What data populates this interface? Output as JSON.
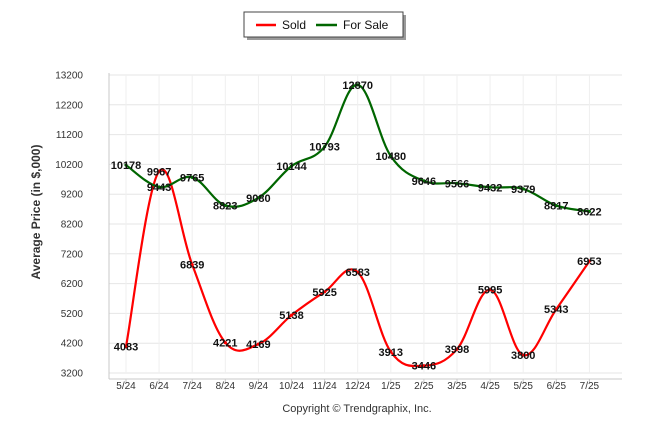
{
  "chart_data": {
    "type": "line",
    "categories": [
      "5/24",
      "6/24",
      "7/24",
      "8/24",
      "9/24",
      "10/24",
      "11/24",
      "12/24",
      "1/25",
      "2/25",
      "3/25",
      "4/25",
      "5/25",
      "6/25",
      "7/25"
    ],
    "series": [
      {
        "name": "Sold",
        "color": "#ff0000",
        "values": [
          4083,
          9967,
          6839,
          4221,
          4169,
          5138,
          5925,
          6583,
          3913,
          3446,
          3998,
          5995,
          3800,
          5343,
          6953
        ]
      },
      {
        "name": "For Sale",
        "color": "#006600",
        "values": [
          10178,
          9443,
          9765,
          8823,
          9080,
          10144,
          10793,
          12870,
          10480,
          9646,
          9566,
          9432,
          9379,
          8817,
          8622
        ]
      }
    ],
    "ylabel": "Average Price (in $,000)",
    "xlabel": "",
    "ylim": [
      3200,
      13200
    ],
    "yticks": [
      3200,
      4200,
      5200,
      6200,
      7200,
      8200,
      9200,
      10200,
      11200,
      12200,
      13200
    ],
    "grid": true,
    "legend_position": "top-center",
    "credit": "Copyright © Trendgraphix, Inc."
  }
}
